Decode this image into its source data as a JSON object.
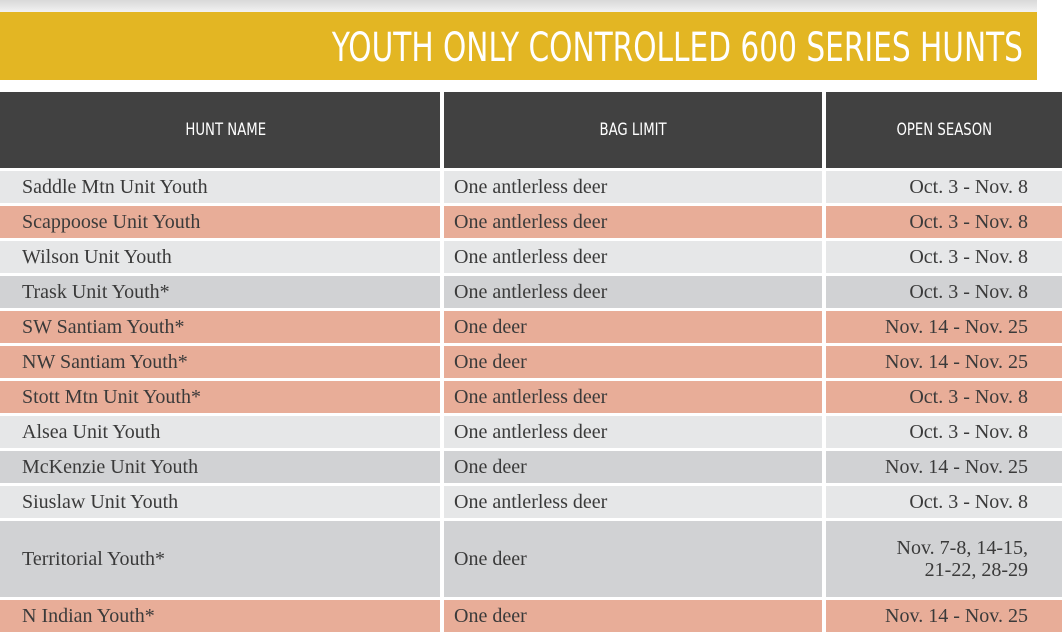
{
  "header": {
    "title": "YOUTH ONLY CONTROLLED 600 SERIES HUNTS"
  },
  "table": {
    "columns": [
      "HUNT NAME",
      "BAG LIMIT",
      "OPEN SEASON"
    ],
    "rows": [
      [
        "Saddle Mtn Unit Youth",
        "One antlerless deer",
        "Oct. 3 - Nov. 8"
      ],
      [
        "Scappoose Unit Youth",
        "One antlerless deer",
        "Oct. 3 - Nov. 8"
      ],
      [
        "Wilson Unit Youth",
        "One antlerless deer",
        "Oct. 3 - Nov. 8"
      ],
      [
        "Trask Unit Youth*",
        "One antlerless deer",
        "Oct. 3 - Nov. 8"
      ],
      [
        "SW Santiam Youth*",
        "One deer",
        "Nov. 14 - Nov. 25"
      ],
      [
        "NW Santiam Youth*",
        "One deer",
        "Nov. 14 - Nov. 25"
      ],
      [
        "Stott Mtn Unit Youth*",
        "One antlerless deer",
        "Oct. 3 - Nov. 8"
      ],
      [
        "Alsea Unit Youth",
        "One antlerless deer",
        "Oct. 3 - Nov. 8"
      ],
      [
        "McKenzie Unit Youth",
        "One deer",
        "Nov. 14 - Nov. 25"
      ],
      [
        "Siuslaw Unit Youth",
        "One antlerless deer",
        "Oct. 3 - Nov. 8"
      ],
      [
        "Territorial Youth*",
        "One deer",
        "Nov. 7-8, 14-15, 21-22, 28-29"
      ],
      [
        "N Indian Youth*",
        "One deer",
        "Nov. 14 - Nov. 25"
      ]
    ]
  }
}
